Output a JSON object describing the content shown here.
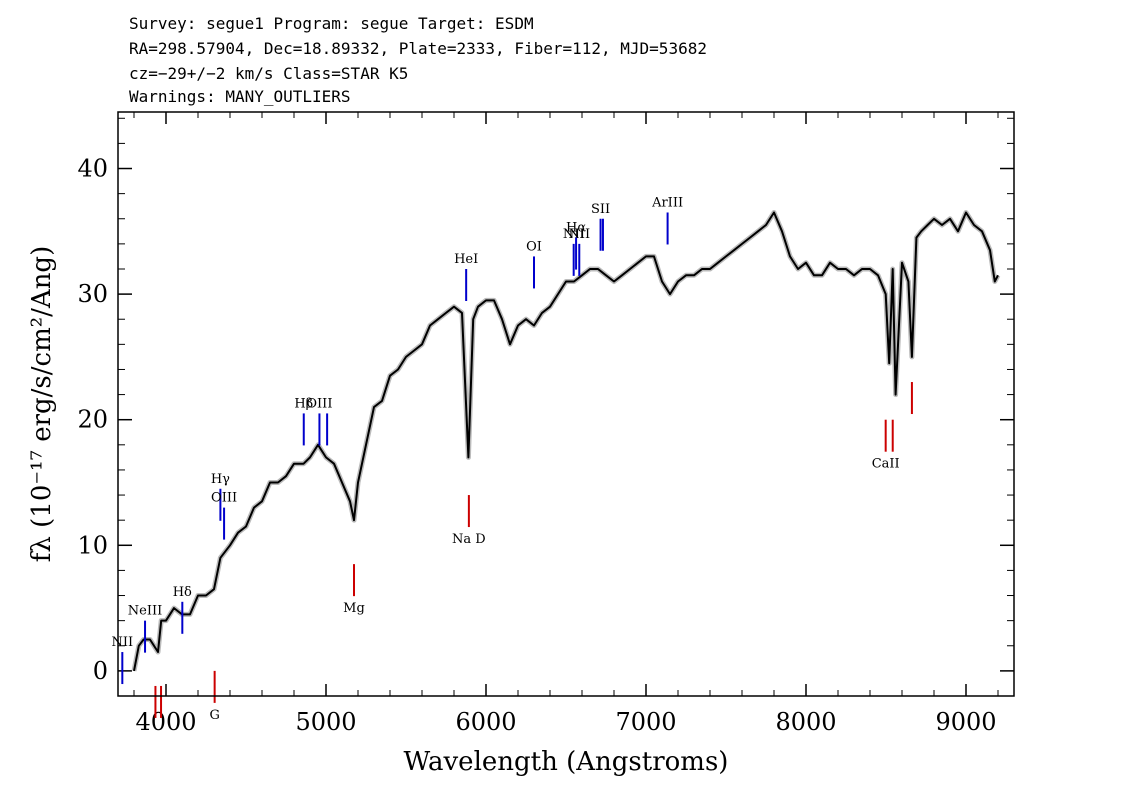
{
  "header": {
    "line1": "Survey: segue1 Program: segue Target: ESDM",
    "line2": "RA=298.57904, Dec=18.89332, Plate=2333, Fiber=112, MJD=53682",
    "line3": "cz=−29+/−2 km/s Class=STAR K5",
    "line4": "Warnings: MANY_OUTLIERS"
  },
  "chart_data": {
    "type": "line",
    "title": "",
    "xlabel": "Wavelength (Angstroms)",
    "ylabel": "fλ (10⁻¹⁷ erg/s/cm²/Ang)",
    "xlim": [
      3700,
      9300
    ],
    "ylim": [
      -2,
      44.5
    ],
    "x_ticks": [
      4000,
      5000,
      6000,
      7000,
      8000,
      9000
    ],
    "y_ticks": [
      0,
      10,
      20,
      30,
      40
    ],
    "grid": false,
    "series": [
      {
        "color": "#000000",
        "x": [
          3800,
          3830,
          3860,
          3900,
          3950,
          3970,
          4000,
          4050,
          4100,
          4150,
          4200,
          4250,
          4300,
          4340,
          4400,
          4450,
          4500,
          4550,
          4600,
          4650,
          4700,
          4750,
          4800,
          4860,
          4900,
          4950,
          5000,
          5050,
          5100,
          5150,
          5175,
          5200,
          5250,
          5300,
          5350,
          5400,
          5450,
          5500,
          5550,
          5600,
          5650,
          5700,
          5750,
          5800,
          5850,
          5890,
          5920,
          5950,
          6000,
          6050,
          6100,
          6150,
          6200,
          6250,
          6300,
          6350,
          6400,
          6450,
          6500,
          6550,
          6600,
          6650,
          6700,
          6750,
          6800,
          6850,
          6900,
          6950,
          7000,
          7050,
          7100,
          7150,
          7200,
          7250,
          7300,
          7350,
          7400,
          7450,
          7500,
          7550,
          7600,
          7650,
          7700,
          7750,
          7800,
          7850,
          7900,
          7950,
          8000,
          8050,
          8100,
          8150,
          8200,
          8250,
          8300,
          8350,
          8400,
          8450,
          8498,
          8520,
          8542,
          8560,
          8600,
          8640,
          8662,
          8690,
          8720,
          8760,
          8800,
          8850,
          8900,
          8950,
          9000,
          9050,
          9100,
          9150,
          9180,
          9200
        ],
        "y": [
          0,
          2,
          2.5,
          2.5,
          1.5,
          4,
          4,
          5,
          4.5,
          4.5,
          6,
          6,
          6.5,
          9,
          10,
          11,
          11.5,
          13,
          13.5,
          15,
          15,
          15.5,
          16.5,
          16.5,
          17,
          18,
          17,
          16.5,
          15,
          13.5,
          12,
          15,
          18,
          21,
          21.5,
          23.5,
          24,
          25,
          25.5,
          26,
          27.5,
          28,
          28.5,
          29,
          28.5,
          17,
          28,
          29,
          29.5,
          29.5,
          28,
          26,
          27.5,
          28,
          27.5,
          28.5,
          29,
          30,
          31,
          31,
          31.5,
          32,
          32,
          31.5,
          31,
          31.5,
          32,
          32.5,
          33,
          33,
          31,
          30,
          31,
          31.5,
          31.5,
          32,
          32,
          32.5,
          33,
          33.5,
          34,
          34.5,
          35,
          35.5,
          36.5,
          35,
          33,
          32,
          32.5,
          31.5,
          31.5,
          32.5,
          32,
          32,
          31.5,
          32,
          32,
          31.5,
          30,
          24.5,
          32,
          22,
          32.5,
          31,
          25,
          34.5,
          35,
          35.5,
          36,
          35.5,
          36,
          35,
          36.5,
          35.5,
          35,
          33.5,
          31,
          31.5
        ]
      }
    ],
    "lines": [
      {
        "label": "NII",
        "x": 3727,
        "y": 1.5,
        "color": "#0000cc"
      },
      {
        "label": "NeIII",
        "x": 3869,
        "y": 4,
        "color": "#0000cc"
      },
      {
        "label": "Hδ",
        "x": 4102,
        "y": 5.5,
        "color": "#0000cc"
      },
      {
        "label": "Hγ",
        "x": 4340,
        "y": 14.5,
        "color": "#0000cc"
      },
      {
        "label": "OIII",
        "x": 4363,
        "y": 13,
        "color": "#0000cc"
      },
      {
        "label": "Hβ",
        "x": 4861,
        "y": 20.5,
        "color": "#0000cc"
      },
      {
        "label": "OIII",
        "x": 4959,
        "y": 20.5,
        "color": "#0000cc"
      },
      {
        "label": "",
        "x": 5007,
        "y": 20.5,
        "color": "#0000cc"
      },
      {
        "label": "HeI",
        "x": 5876,
        "y": 32,
        "color": "#0000cc"
      },
      {
        "label": "OI",
        "x": 6300,
        "y": 33,
        "color": "#0000cc"
      },
      {
        "label": "NII",
        "x": 6548,
        "y": 34,
        "color": "#0000cc"
      },
      {
        "label": "Hα",
        "x": 6563,
        "y": 34.5,
        "color": "#0000cc"
      },
      {
        "label": "NII",
        "x": 6583,
        "y": 34,
        "color": "#0000cc"
      },
      {
        "label": "SII",
        "x": 6716,
        "y": 36,
        "color": "#0000cc"
      },
      {
        "label": "",
        "x": 6731,
        "y": 36,
        "color": "#0000cc"
      },
      {
        "label": "ArIII",
        "x": 7135,
        "y": 36.5,
        "color": "#0000cc"
      },
      {
        "label": "",
        "x": 3934,
        "y": -1.2,
        "color": "#cc0000"
      },
      {
        "label": "",
        "x": 3969,
        "y": -1.2,
        "color": "#cc0000"
      },
      {
        "label": "G",
        "x": 4304,
        "y": 0,
        "color": "#cc0000"
      },
      {
        "label": "Mg",
        "x": 5175,
        "y": 8.5,
        "color": "#cc0000"
      },
      {
        "label": "Na D",
        "x": 5893,
        "y": 14,
        "color": "#cc0000"
      },
      {
        "label": "CaII",
        "x": 8498,
        "y": 20,
        "color": "#cc0000"
      },
      {
        "label": "",
        "x": 8542,
        "y": 20,
        "color": "#cc0000"
      },
      {
        "label": "",
        "x": 8662,
        "y": 23,
        "color": "#cc0000"
      }
    ]
  }
}
